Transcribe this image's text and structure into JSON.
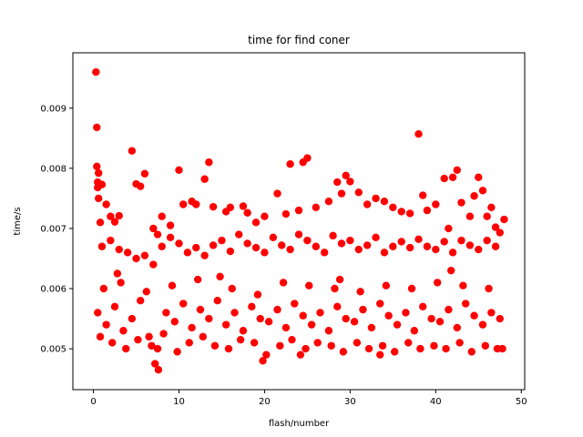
{
  "chart_data": {
    "type": "scatter",
    "title": "time for find coner",
    "xlabel": "flash/number",
    "ylabel": "time/s",
    "xlim": [
      -2.4,
      50.4
    ],
    "ylim": [
      0.00432,
      0.00992
    ],
    "xticks": [
      0,
      10,
      20,
      30,
      40,
      50
    ],
    "xtick_labels": [
      "0",
      "10",
      "20",
      "30",
      "40",
      "50"
    ],
    "yticks": [
      0.005,
      0.006,
      0.007,
      0.008,
      0.009
    ],
    "ytick_labels": [
      "0.005",
      "0.006",
      "0.007",
      "0.008",
      "0.009"
    ],
    "grid": false,
    "legend": "none",
    "marker_color": "#ff0000",
    "series": [
      {
        "x": [
          0.3,
          0.4,
          0.4,
          0.5,
          0.5,
          0.6,
          0.6,
          0.8,
          1.0,
          1.5,
          2.0,
          2.5,
          3.0,
          4.5,
          5.0,
          5.5,
          6.0,
          7.0,
          7.5,
          8.0,
          9.0,
          10.0,
          10.5,
          11.5,
          12.0,
          13.0,
          13.5,
          14.0,
          15.5,
          16.0,
          17.5,
          18.0,
          19.0,
          20.0,
          21.5,
          22.5,
          23.0,
          24.0,
          24.5,
          25.0,
          26.0,
          27.5,
          28.5,
          29.0,
          29.5,
          30.0,
          31.0,
          32.0,
          33.0,
          34.0,
          35.0,
          36.0,
          37.0,
          38.0,
          38.5,
          39.0,
          40.0,
          41.0,
          41.5,
          42.0,
          42.5,
          43.0,
          44.0,
          44.5,
          45.0,
          45.5,
          46.0,
          46.5,
          47.0,
          47.5,
          48.0,
          1.0,
          2.0,
          3.0,
          4.0,
          5.0,
          6.0,
          7.0,
          8.0,
          9.0,
          10.0,
          11.0,
          12.0,
          13.0,
          14.0,
          15.0,
          16.0,
          17.0,
          18.0,
          19.0,
          20.0,
          21.0,
          22.0,
          23.0,
          24.0,
          25.0,
          26.0,
          27.0,
          28.0,
          29.0,
          30.0,
          31.0,
          32.0,
          33.0,
          34.0,
          35.0,
          36.0,
          37.0,
          38.0,
          39.0,
          40.0,
          41.0,
          42.0,
          43.0,
          44.0,
          45.0,
          46.0,
          47.0,
          0.5,
          1.5,
          2.5,
          3.5,
          4.5,
          5.5,
          6.5,
          7.5,
          8.5,
          9.5,
          10.5,
          11.5,
          12.5,
          13.5,
          14.5,
          15.5,
          16.5,
          17.5,
          18.5,
          19.5,
          20.5,
          21.5,
          22.5,
          23.5,
          24.5,
          25.5,
          26.5,
          27.5,
          28.5,
          29.5,
          30.5,
          31.5,
          32.5,
          33.5,
          34.5,
          35.5,
          36.5,
          37.5,
          38.5,
          39.5,
          40.5,
          41.5,
          42.5,
          43.5,
          44.5,
          45.5,
          46.5,
          47.5,
          0.8,
          2.2,
          3.8,
          5.2,
          6.8,
          8.2,
          9.8,
          11.2,
          12.8,
          14.2,
          15.8,
          17.2,
          18.8,
          20.2,
          21.8,
          23.2,
          24.8,
          26.2,
          27.8,
          29.2,
          30.8,
          32.2,
          33.8,
          35.2,
          36.8,
          38.2,
          39.8,
          41.2,
          42.8,
          44.2,
          45.8,
          47.2,
          1.2,
          3.2,
          6.2,
          9.2,
          12.2,
          16.2,
          19.2,
          22.2,
          25.2,
          28.2,
          31.2,
          34.2,
          37.2,
          40.2,
          43.2,
          46.2,
          7.2,
          7.6,
          19.8,
          24.2,
          47.8,
          33.5,
          14.8,
          41.8,
          2.8,
          28.8
        ],
        "y": [
          0.0096,
          0.00868,
          0.00803,
          0.00777,
          0.00768,
          0.0075,
          0.00792,
          0.0071,
          0.00773,
          0.0074,
          0.0072,
          0.00711,
          0.00721,
          0.00829,
          0.00774,
          0.0077,
          0.00791,
          0.007,
          0.0069,
          0.0072,
          0.00705,
          0.00797,
          0.0074,
          0.00745,
          0.0074,
          0.00782,
          0.0081,
          0.00736,
          0.00728,
          0.00735,
          0.00737,
          0.00726,
          0.0071,
          0.0072,
          0.00758,
          0.00724,
          0.00807,
          0.0073,
          0.0081,
          0.00817,
          0.00735,
          0.00745,
          0.00777,
          0.00758,
          0.00788,
          0.00778,
          0.0076,
          0.0074,
          0.0075,
          0.00745,
          0.00735,
          0.00728,
          0.00725,
          0.00857,
          0.00755,
          0.0073,
          0.0074,
          0.00783,
          0.007,
          0.00785,
          0.00797,
          0.00743,
          0.0072,
          0.00754,
          0.00785,
          0.00763,
          0.0072,
          0.00735,
          0.00702,
          0.00693,
          0.00715,
          0.0067,
          0.0068,
          0.00665,
          0.0066,
          0.0065,
          0.00655,
          0.0064,
          0.0067,
          0.00685,
          0.00675,
          0.0066,
          0.00668,
          0.00655,
          0.00672,
          0.0068,
          0.00662,
          0.0069,
          0.00675,
          0.00668,
          0.0066,
          0.00685,
          0.00672,
          0.00665,
          0.0069,
          0.0068,
          0.0067,
          0.0066,
          0.00688,
          0.00675,
          0.0068,
          0.00665,
          0.00672,
          0.00685,
          0.0066,
          0.0067,
          0.00678,
          0.00668,
          0.00682,
          0.0067,
          0.00665,
          0.00678,
          0.0066,
          0.0068,
          0.00672,
          0.00665,
          0.0068,
          0.0067,
          0.0056,
          0.0054,
          0.0057,
          0.0053,
          0.0055,
          0.0058,
          0.0052,
          0.005,
          0.0056,
          0.00545,
          0.00575,
          0.00535,
          0.00565,
          0.0055,
          0.0058,
          0.0054,
          0.0056,
          0.0053,
          0.0057,
          0.0055,
          0.00545,
          0.00565,
          0.00535,
          0.00575,
          0.00555,
          0.0054,
          0.0056,
          0.0053,
          0.0057,
          0.0055,
          0.00545,
          0.00565,
          0.00535,
          0.00575,
          0.00555,
          0.0054,
          0.0056,
          0.0053,
          0.0057,
          0.0055,
          0.00545,
          0.00565,
          0.00535,
          0.00575,
          0.00555,
          0.0054,
          0.0056,
          0.0055,
          0.0052,
          0.0051,
          0.005,
          0.00515,
          0.00505,
          0.00525,
          0.00495,
          0.0051,
          0.0052,
          0.00505,
          0.005,
          0.00515,
          0.0051,
          0.0049,
          0.00505,
          0.00515,
          0.005,
          0.0051,
          0.00505,
          0.00495,
          0.0051,
          0.005,
          0.00505,
          0.00495,
          0.0051,
          0.005,
          0.00505,
          0.005,
          0.0051,
          0.00495,
          0.00505,
          0.005,
          0.006,
          0.0061,
          0.00595,
          0.00605,
          0.00615,
          0.006,
          0.0059,
          0.0061,
          0.00605,
          0.006,
          0.00595,
          0.00605,
          0.006,
          0.0061,
          0.00605,
          0.006,
          0.00475,
          0.00465,
          0.0048,
          0.0049,
          0.005,
          0.0049,
          0.0062,
          0.0063,
          0.00625,
          0.00615
        ],
        "x_dense_synth": true
      }
    ]
  }
}
